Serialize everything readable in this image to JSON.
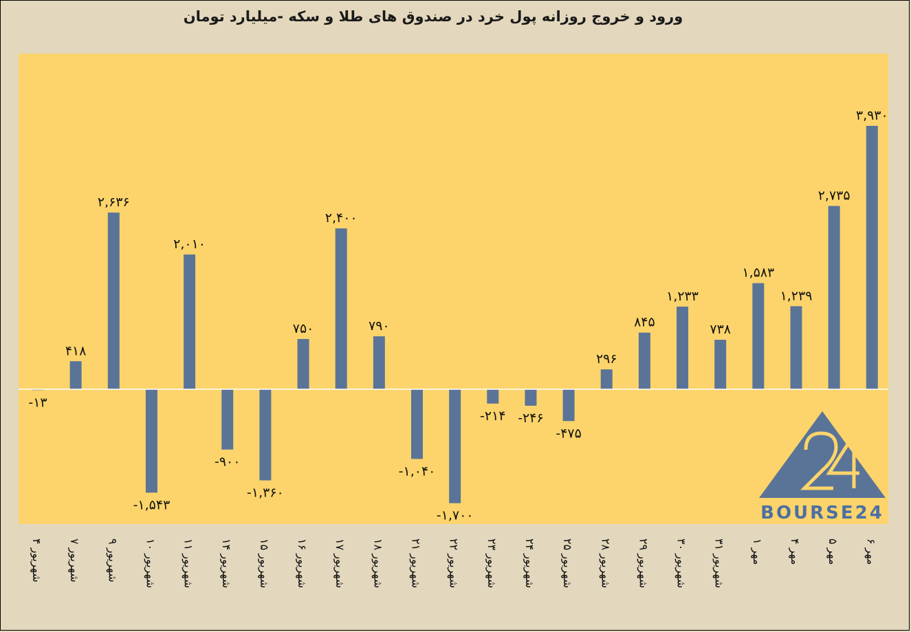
{
  "chart_data": {
    "type": "bar",
    "title": "ورود و خروج روزانه پول خرد در صندوق های طلا و سکه -میلیارد تومان",
    "categories": [
      "۴ شهریور",
      "۷ شهریور",
      "۹ شهریور",
      "۱۰ شهریور",
      "۱۱ شهریور",
      "۱۴ شهریور",
      "۱۵ شهریور",
      "۱۶ شهریور",
      "۱۷ شهریور",
      "۱۸ شهریور",
      "۲۱ شهریور",
      "۲۲ شهریور",
      "۲۳ شهریور",
      "۲۴ شهریور",
      "۲۵ شهریور",
      "۲۸ شهریور",
      "۲۹ شهریور",
      "۳۰ شهریور",
      "۳۱ شهریور",
      "۱ مهر",
      "۴ مهر",
      "۵ مهر",
      "۶ مهر"
    ],
    "values": [
      -13,
      418,
      2636,
      -1543,
      2010,
      -900,
      -1360,
      750,
      2400,
      790,
      -1040,
      -1700,
      -214,
      -246,
      -475,
      296,
      845,
      1233,
      738,
      1583,
      1239,
      2735,
      3930
    ],
    "data_labels": [
      "-۱۳",
      "۴۱۸",
      "۲,۶۳۶",
      "-۱,۵۴۳",
      "۲,۰۱۰",
      "-۹۰۰",
      "-۱,۳۶۰",
      "۷۵۰",
      "۲,۴۰۰",
      "۷۹۰",
      "-۱,۰۴۰",
      "-۱,۷۰۰",
      "-۲۱۴",
      "-۲۴۶",
      "-۴۷۵",
      "۲۹۶",
      "۸۴۵",
      "۱,۲۳۳",
      "۷۳۸",
      "۱,۵۸۳",
      "۱,۲۳۹",
      "۲,۷۳۵",
      "۳,۹۳۰"
    ],
    "ylim": [
      -2000,
      4000
    ],
    "grid": false,
    "legend": "none",
    "colors": {
      "bar": "#5a7497",
      "plot_bg": "#fcd46b",
      "page_bg": "#e3d7bd",
      "zero_line": "#ffffff"
    }
  },
  "watermark": {
    "text": "BOURSE24",
    "color": "#4c6fa3"
  }
}
